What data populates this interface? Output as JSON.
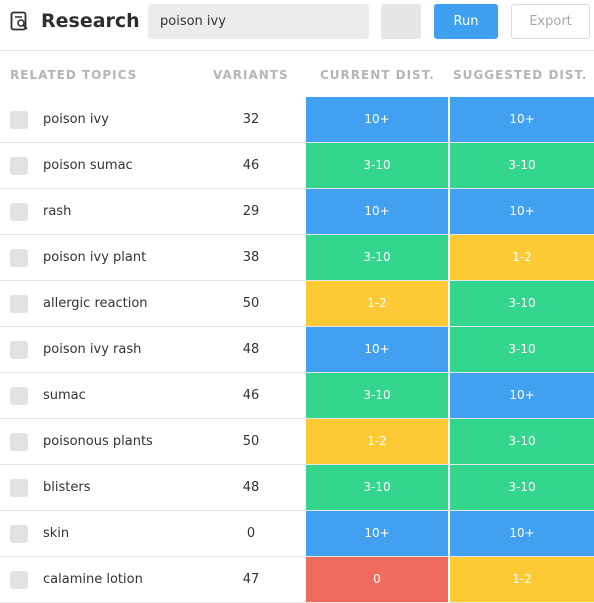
{
  "header": {
    "title": "Research",
    "search_value": "poison ivy",
    "run_label": "Run",
    "export_label": "Export"
  },
  "columns": {
    "topics": "RELATED TOPICS",
    "variants": "VARIANTS",
    "current": "CURRENT DIST.",
    "suggested": "SUGGESTED DIST."
  },
  "colors": {
    "10+": "#42a0f0",
    "3-10": "#34d58c",
    "1-2": "#fdc934",
    "0": "#ef6b5e"
  },
  "rows": [
    {
      "topic": "poison ivy",
      "variants": "32",
      "current": "10+",
      "suggested": "10+"
    },
    {
      "topic": "poison sumac",
      "variants": "46",
      "current": "3-10",
      "suggested": "3-10"
    },
    {
      "topic": "rash",
      "variants": "29",
      "current": "10+",
      "suggested": "10+"
    },
    {
      "topic": "poison ivy plant",
      "variants": "38",
      "current": "3-10",
      "suggested": "1-2"
    },
    {
      "topic": "allergic reaction",
      "variants": "50",
      "current": "1-2",
      "suggested": "3-10"
    },
    {
      "topic": "poison ivy rash",
      "variants": "48",
      "current": "10+",
      "suggested": "3-10"
    },
    {
      "topic": "sumac",
      "variants": "46",
      "current": "3-10",
      "suggested": "10+"
    },
    {
      "topic": "poisonous plants",
      "variants": "50",
      "current": "1-2",
      "suggested": "3-10"
    },
    {
      "topic": "blisters",
      "variants": "48",
      "current": "3-10",
      "suggested": "3-10"
    },
    {
      "topic": "skin",
      "variants": "0",
      "current": "10+",
      "suggested": "10+"
    },
    {
      "topic": "calamine lotion",
      "variants": "47",
      "current": "0",
      "suggested": "1-2"
    }
  ]
}
